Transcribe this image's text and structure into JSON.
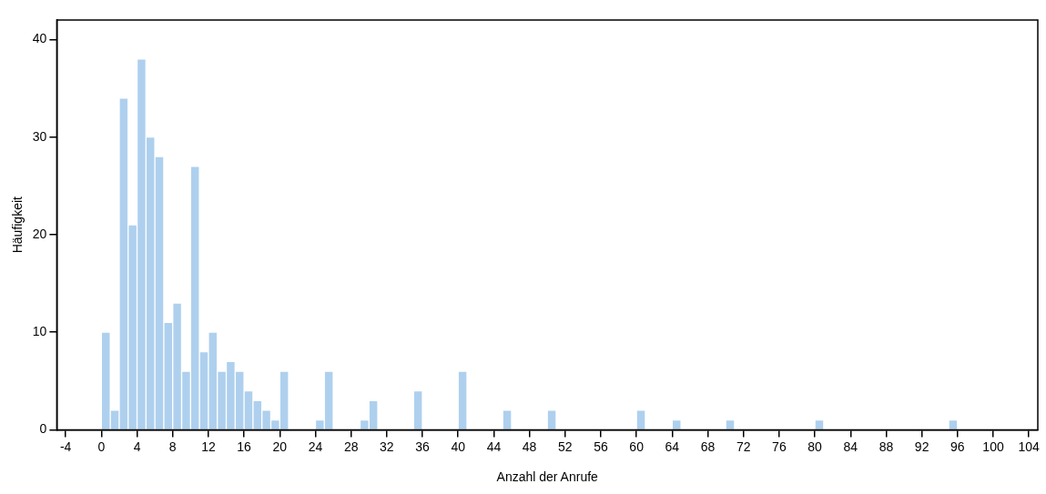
{
  "chart_data": {
    "type": "histogram",
    "xlabel": "Anzahl der Anrufe",
    "ylabel": "Häufigkeit",
    "color": "#aed0ee",
    "bins": [
      0,
      1,
      2,
      3,
      4,
      5,
      6,
      7,
      8,
      9,
      10,
      11,
      12,
      13,
      14,
      15,
      16,
      17,
      18,
      19,
      20,
      21,
      22,
      23,
      24,
      25,
      26,
      27,
      28,
      29,
      30,
      31,
      32,
      33,
      34,
      35,
      36,
      37,
      38,
      39,
      40,
      41,
      42,
      43,
      44,
      45,
      46,
      47,
      48,
      49,
      50,
      51,
      52,
      53,
      54,
      55,
      56,
      57,
      58,
      59,
      60,
      61,
      62,
      63,
      64,
      65,
      66,
      67,
      68,
      69,
      70,
      71,
      72,
      73,
      74,
      75,
      76,
      77,
      78,
      79,
      80,
      81,
      82,
      83,
      84,
      85,
      86,
      87,
      88,
      89,
      90,
      91,
      92,
      93,
      94,
      95,
      96
    ],
    "values": [
      10,
      2,
      34,
      21,
      38,
      30,
      28,
      11,
      13,
      6,
      27,
      8,
      10,
      6,
      7,
      6,
      4,
      3,
      2,
      1,
      6,
      0,
      0,
      0,
      1,
      6,
      0,
      0,
      0,
      1,
      3,
      0,
      0,
      0,
      0,
      4,
      0,
      0,
      0,
      0,
      6,
      0,
      0,
      0,
      0,
      2,
      0,
      0,
      0,
      0,
      2,
      0,
      0,
      0,
      0,
      0,
      0,
      0,
      0,
      0,
      2,
      0,
      0,
      0,
      1,
      0,
      0,
      0,
      0,
      0,
      1,
      0,
      0,
      0,
      0,
      0,
      0,
      0,
      0,
      0,
      1,
      0,
      0,
      0,
      0,
      0,
      0,
      0,
      0,
      0,
      0,
      0,
      0,
      0,
      0,
      1
    ],
    "xlim": [
      -5,
      105
    ],
    "xticks": [
      -4,
      0,
      4,
      8,
      12,
      16,
      20,
      24,
      28,
      32,
      36,
      40,
      44,
      48,
      52,
      56,
      60,
      64,
      68,
      72,
      76,
      80,
      84,
      88,
      92,
      96,
      100,
      104
    ],
    "ylim": [
      0,
      42
    ],
    "yticks": [
      0,
      10,
      20,
      30,
      40
    ],
    "grid": false,
    "legend": false
  }
}
